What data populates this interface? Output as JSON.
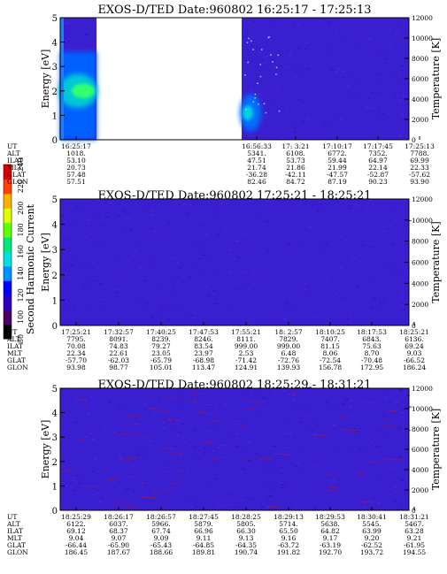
{
  "chart_data": {
    "type": "heatmap",
    "colorbar": {
      "label": "Second Harmonic Current",
      "ticks": [
        "80",
        "100",
        "120",
        "140",
        "160",
        "180",
        "200",
        "220",
        "240"
      ],
      "colors": [
        "#000000",
        "#4a0060",
        "#2b00c0",
        "#0000ff",
        "#0090ff",
        "#00e0e0",
        "#00e880",
        "#60ff00",
        "#e0ff00",
        "#ffb000",
        "#ff4000",
        "#e00000"
      ]
    },
    "panels": [
      {
        "title": "EXOS-D/TED  Date:960802  16:25:17 - 17:25:13",
        "ylabel": "Energy [eV]",
        "y2label": "Temperature [K]",
        "yticks": [
          "0",
          "1",
          "2",
          "3",
          "4",
          "5"
        ],
        "y2ticks": [
          "0",
          "2000",
          "4000",
          "6000",
          "8000",
          "10000",
          "12000"
        ],
        "ylim": [
          0,
          5
        ],
        "y2lim": [
          0,
          12000
        ],
        "data_gap": [
          "16:32",
          "16:56"
        ],
        "rows": [
          {
            "name": "UT",
            "values": [
              "16:25:17",
              "16:56:33",
              "17: 3:21",
              "17:10:17",
              "17:17:45",
              "17:25:13"
            ]
          },
          {
            "name": "ALT",
            "values": [
              "1018.",
              "5341.",
              "6108.",
              "6772.",
              "7352.",
              "7788."
            ]
          },
          {
            "name": "ILAT",
            "values": [
              "53.10",
              "47.51",
              "53.73",
              "59.44",
              "64.97",
              "69.99"
            ]
          },
          {
            "name": "MLT",
            "values": [
              "20.73",
              "21.74",
              "21.86",
              "21.99",
              "22.14",
              "22.33"
            ]
          },
          {
            "name": "GLAT",
            "values": [
              "57.48",
              "-36.28",
              "-42.11",
              "-47.57",
              "-52.87",
              "-57.62"
            ]
          },
          {
            "name": "GLON",
            "values": [
              "57.51",
              "82.46",
              "84.72",
              "87.19",
              "90.23",
              "93.90"
            ]
          }
        ]
      },
      {
        "title": "EXOS-D/TED  Date:960802  17:25:21 - 18:25:21",
        "ylabel": "Energy [eV]",
        "y2label": "Temperature [K]",
        "yticks": [
          "0",
          "1",
          "2",
          "3",
          "4",
          "5"
        ],
        "y2ticks": [
          "0",
          "2000",
          "4000",
          "6000",
          "8000",
          "10000",
          "12000"
        ],
        "ylim": [
          0,
          5
        ],
        "y2lim": [
          0,
          12000
        ],
        "rows": [
          {
            "name": "UT",
            "values": [
              "17:25:21",
              "17:32:57",
              "17:40:25",
              "17:47:53",
              "17:55:21",
              "18: 2:57",
              "18:10:25",
              "18:17:53",
              "18:25:21"
            ]
          },
          {
            "name": "ALT",
            "values": [
              "7795.",
              "8091.",
              "8239.",
              "8246.",
              "8111.",
              "7829.",
              "7407.",
              "6843.",
              "6136."
            ]
          },
          {
            "name": "ILAT",
            "values": [
              "70.08",
              "74.83",
              "79.27",
              "83.54",
              "999.00",
              "999.00",
              "81.15",
              "75.63",
              "69.24"
            ]
          },
          {
            "name": "MLT",
            "values": [
              "22.34",
              "22.61",
              "23.05",
              "23.97",
              "2.53",
              "6.48",
              "8.06",
              "8.70",
              "9.03"
            ]
          },
          {
            "name": "GLAT",
            "values": [
              "-57.70",
              "-62.03",
              "-65.79",
              "-68.98",
              "-71.42",
              "-72.76",
              "-72.54",
              "-70.48",
              "-66.52"
            ]
          },
          {
            "name": "GLON",
            "values": [
              "93.98",
              "98.77",
              "105.01",
              "113.47",
              "124.91",
              "139.93",
              "156.78",
              "172.95",
              "186.24"
            ]
          }
        ]
      },
      {
        "title": "EXOS-D/TED  Date:960802  18:25:29 - 18:31:21",
        "ylabel": "Energy [eV]",
        "y2label": "Temperature [K]",
        "yticks": [
          "0",
          "1",
          "2",
          "3",
          "4",
          "5"
        ],
        "y2ticks": [
          "0",
          "2000",
          "4000",
          "6000",
          "8000",
          "10000",
          "12000"
        ],
        "ylim": [
          0,
          5
        ],
        "y2lim": [
          0,
          12000
        ],
        "rows": [
          {
            "name": "UT",
            "values": [
              "18:25:29",
              "18:26:17",
              "18:26:57",
              "18:27:45",
              "18:28:25",
              "18:29:13",
              "18:29:53",
              "18:30:41",
              "18:31:21"
            ]
          },
          {
            "name": "ALT",
            "values": [
              "6122.",
              "6037.",
              "5966.",
              "5879.",
              "5805.",
              "5714.",
              "5638.",
              "5545.",
              "5467."
            ]
          },
          {
            "name": "ILAT",
            "values": [
              "69.12",
              "68.37",
              "67.74",
              "66.96",
              "66.30",
              "65.50",
              "64.82",
              "63.99",
              "63.28"
            ]
          },
          {
            "name": "MLT",
            "values": [
              "9.04",
              "9.07",
              "9.09",
              "9.11",
              "9.13",
              "9.16",
              "9.17",
              "9.20",
              "9.21"
            ]
          },
          {
            "name": "GLAT",
            "values": [
              "-66.44",
              "-65.90",
              "-65.43",
              "-64.85",
              "-64.35",
              "-63.72",
              "-63.19",
              "-62.52",
              "-61.95"
            ]
          },
          {
            "name": "GLON",
            "values": [
              "186.45",
              "187.67",
              "188.66",
              "189.81",
              "190.74",
              "191.82",
              "192.70",
              "193.72",
              "194.55"
            ]
          }
        ]
      }
    ]
  }
}
